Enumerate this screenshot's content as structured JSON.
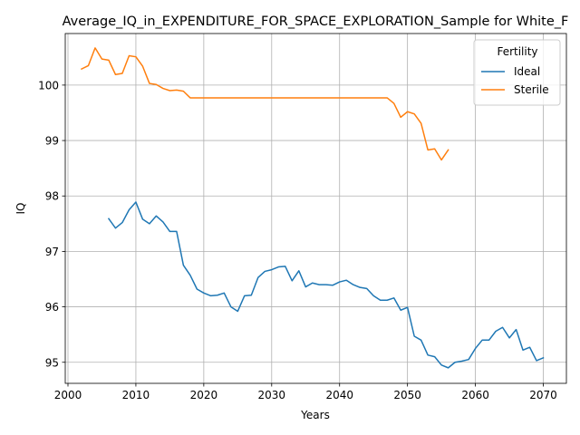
{
  "chart_data": {
    "type": "line",
    "title": "Average_IQ_in_EXPENDITURE_FOR_SPACE_EXPLORATION_Sample for White_F",
    "xlabel": "Years",
    "ylabel": "IQ",
    "xlim": [
      1999.6,
      2073.4
    ],
    "ylim": [
      94.62,
      100.93
    ],
    "xticks": [
      2000,
      2010,
      2020,
      2030,
      2040,
      2050,
      2060,
      2070
    ],
    "yticks": [
      95,
      96,
      97,
      98,
      99,
      100
    ],
    "grid": true,
    "legend": {
      "title": "Fertility",
      "placement": "top-right"
    },
    "series": [
      {
        "name": "Ideal",
        "color": "#1f77b4",
        "x": [
          2006,
          2007,
          2008,
          2009,
          2010,
          2011,
          2012,
          2013,
          2014,
          2015,
          2016,
          2017,
          2018,
          2019,
          2020,
          2021,
          2022,
          2023,
          2024,
          2025,
          2026,
          2027,
          2028,
          2029,
          2030,
          2031,
          2032,
          2033,
          2034,
          2035,
          2036,
          2037,
          2038,
          2039,
          2040,
          2041,
          2042,
          2043,
          2044,
          2045,
          2046,
          2047,
          2048,
          2049,
          2050,
          2051,
          2052,
          2053,
          2054,
          2055,
          2056,
          2057,
          2058,
          2059,
          2060,
          2061,
          2062,
          2063,
          2064,
          2065,
          2066,
          2067,
          2068,
          2069,
          2070
        ],
        "values": [
          97.59,
          97.42,
          97.52,
          97.75,
          97.89,
          97.58,
          97.5,
          97.64,
          97.53,
          97.36,
          97.36,
          96.75,
          96.57,
          96.32,
          96.25,
          96.2,
          96.21,
          96.25,
          96.0,
          95.92,
          96.2,
          96.21,
          96.53,
          96.64,
          96.67,
          96.72,
          96.73,
          96.47,
          96.65,
          96.36,
          96.43,
          96.4,
          96.4,
          96.39,
          96.45,
          96.48,
          96.4,
          96.35,
          96.33,
          96.2,
          96.12,
          96.12,
          96.16,
          95.94,
          95.99,
          95.47,
          95.4,
          95.13,
          95.1,
          94.95,
          94.9,
          95.0,
          95.02,
          95.05,
          95.25,
          95.4,
          95.4,
          95.56,
          95.63,
          95.44,
          95.59,
          95.22,
          95.27,
          95.03,
          95.08
        ]
      },
      {
        "name": "Sterile",
        "color": "#ff7f0e",
        "x": [
          2002,
          2003,
          2004,
          2005,
          2006,
          2007,
          2008,
          2009,
          2010,
          2011,
          2012,
          2013,
          2014,
          2015,
          2016,
          2017,
          2018,
          2019,
          2020,
          2021,
          2022,
          2023,
          2024,
          2025,
          2026,
          2027,
          2028,
          2029,
          2030,
          2031,
          2032,
          2033,
          2034,
          2035,
          2036,
          2037,
          2038,
          2039,
          2040,
          2041,
          2042,
          2043,
          2044,
          2045,
          2046,
          2047,
          2048,
          2049,
          2050,
          2051,
          2052,
          2053,
          2054,
          2055,
          2056
        ],
        "values": [
          100.29,
          100.35,
          100.67,
          100.47,
          100.45,
          100.19,
          100.21,
          100.53,
          100.51,
          100.34,
          100.03,
          100.01,
          99.94,
          99.9,
          99.91,
          99.89,
          99.77,
          99.77,
          99.77,
          99.77,
          99.77,
          99.77,
          99.77,
          99.77,
          99.77,
          99.77,
          99.77,
          99.77,
          99.77,
          99.77,
          99.77,
          99.77,
          99.77,
          99.77,
          99.77,
          99.77,
          99.77,
          99.77,
          99.77,
          99.77,
          99.77,
          99.77,
          99.77,
          99.77,
          99.77,
          99.77,
          99.67,
          99.42,
          99.52,
          99.48,
          99.31,
          98.83,
          98.85,
          98.65,
          98.83
        ]
      }
    ]
  }
}
